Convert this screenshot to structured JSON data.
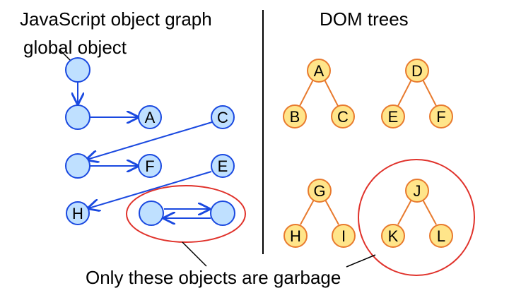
{
  "left_panel": {
    "title": "JavaScript object graph",
    "root_label": "global object",
    "colors": {
      "fill": "#BFE0FF",
      "stroke": "#1A49E0"
    },
    "nodes": [
      {
        "id": "root",
        "label": ""
      },
      {
        "id": "n1",
        "label": ""
      },
      {
        "id": "n2",
        "label": ""
      },
      {
        "id": "A",
        "label": "A"
      },
      {
        "id": "C",
        "label": "C"
      },
      {
        "id": "F",
        "label": "F"
      },
      {
        "id": "E",
        "label": "E"
      },
      {
        "id": "H",
        "label": "H"
      },
      {
        "id": "cyc1",
        "label": ""
      },
      {
        "id": "cyc2",
        "label": ""
      }
    ],
    "edges": [
      {
        "from": "root",
        "to": "n1"
      },
      {
        "from": "n1",
        "to": "A"
      },
      {
        "from": "C",
        "to": "n2"
      },
      {
        "from": "n2",
        "to": "F"
      },
      {
        "from": "E",
        "to": "H"
      },
      {
        "from": "cyc1",
        "to": "cyc2"
      },
      {
        "from": "cyc2",
        "to": "cyc1"
      }
    ]
  },
  "right_panel": {
    "title": "DOM trees",
    "colors": {
      "fill": "#FFE58A",
      "stroke": "#E87A2E"
    },
    "nodes": [
      {
        "id": "A",
        "label": "A"
      },
      {
        "id": "B",
        "label": "B"
      },
      {
        "id": "C",
        "label": "C"
      },
      {
        "id": "D",
        "label": "D"
      },
      {
        "id": "E",
        "label": "E"
      },
      {
        "id": "F",
        "label": "F"
      },
      {
        "id": "G",
        "label": "G"
      },
      {
        "id": "H",
        "label": "H"
      },
      {
        "id": "I",
        "label": "I"
      },
      {
        "id": "J",
        "label": "J"
      },
      {
        "id": "K",
        "label": "K"
      },
      {
        "id": "L",
        "label": "L"
      }
    ],
    "edges": [
      {
        "from": "A",
        "to": "B"
      },
      {
        "from": "A",
        "to": "C"
      },
      {
        "from": "D",
        "to": "E"
      },
      {
        "from": "D",
        "to": "F"
      },
      {
        "from": "G",
        "to": "H"
      },
      {
        "from": "G",
        "to": "I"
      },
      {
        "from": "J",
        "to": "K"
      },
      {
        "from": "J",
        "to": "L"
      }
    ]
  },
  "garbage": {
    "caption": "Only these objects are garbage",
    "highlight_color": "#E0322B"
  }
}
